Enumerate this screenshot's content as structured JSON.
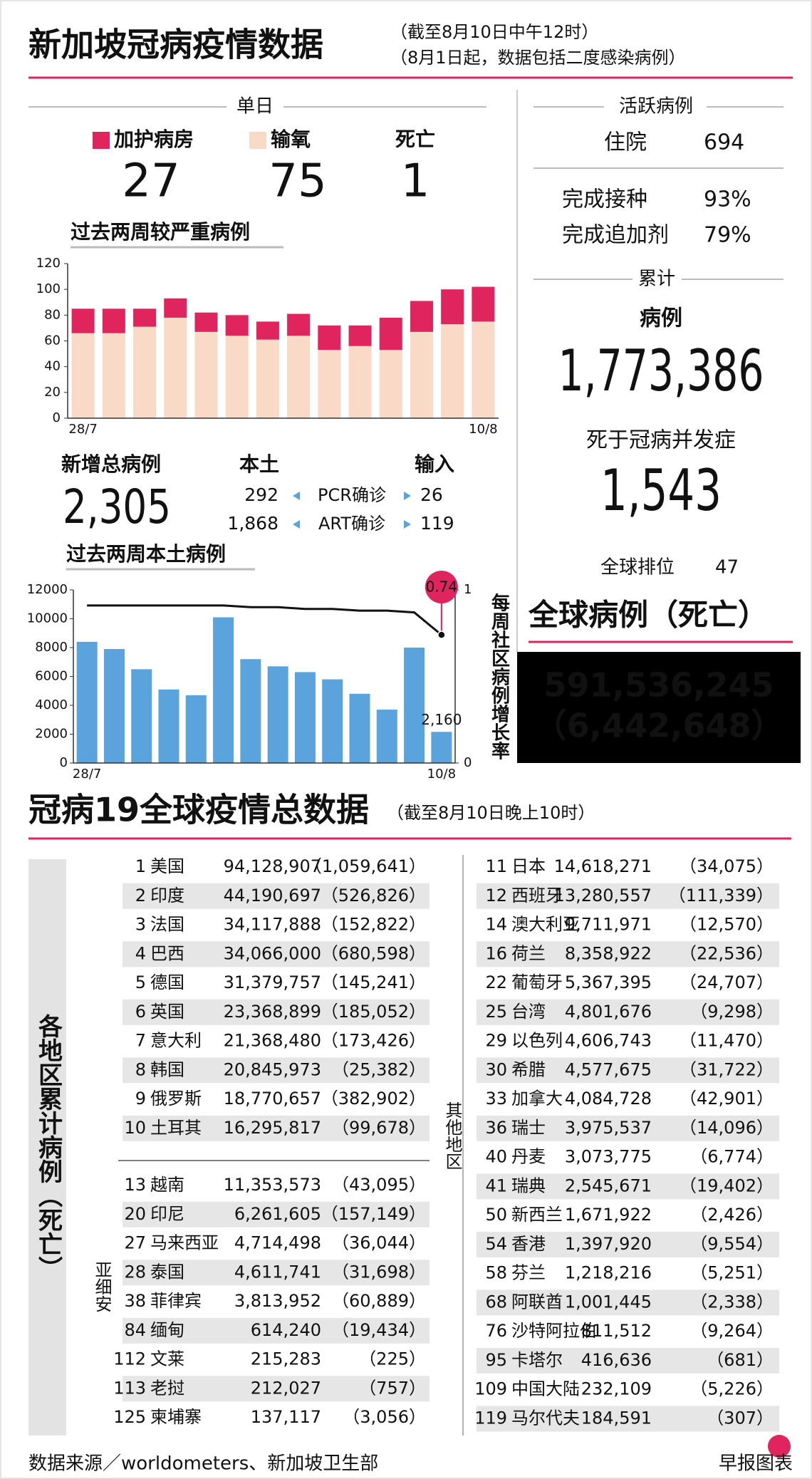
{
  "header": {
    "title": "新加坡冠病疫情数据",
    "notes": [
      "（截至8月10日中午12时）",
      "（8月1日起，数据包括二度感染病例）"
    ]
  },
  "daily": {
    "heading": "单日",
    "death_label": "死亡",
    "death_value": "1"
  },
  "chart_data": [
    {
      "type": "bar",
      "stacked": true,
      "title": "过去两周较严重病例",
      "categories": [
        "28/7",
        null,
        null,
        null,
        null,
        null,
        null,
        null,
        null,
        null,
        null,
        null,
        null,
        "10/8"
      ],
      "series": [
        {
          "name": "输氧",
          "color": "#f9dac6",
          "values": [
            66,
            66,
            71,
            78,
            67,
            64,
            61,
            64,
            53,
            56,
            53,
            67,
            73,
            75
          ]
        },
        {
          "name": "加护病房",
          "color": "#e0245e",
          "values": [
            19,
            19,
            14,
            15,
            15,
            16,
            14,
            17,
            19,
            16,
            25,
            24,
            27,
            27
          ]
        }
      ],
      "ylim": [
        0,
        120
      ],
      "yticks": [
        0,
        20,
        40,
        60,
        80,
        100,
        120
      ]
    },
    {
      "type": "combo",
      "title": "过去两周本土病例",
      "categories": [
        "28/7",
        null,
        null,
        null,
        null,
        null,
        null,
        null,
        null,
        null,
        null,
        null,
        null,
        "10/8"
      ],
      "series": [
        {
          "type": "bar",
          "color": "#5ba3dc",
          "values": [
            8400,
            7900,
            6500,
            5100,
            4700,
            10100,
            7200,
            6700,
            6300,
            5800,
            4800,
            3700,
            8000,
            2160
          ],
          "value_labels": [
            null,
            null,
            null,
            null,
            null,
            null,
            null,
            null,
            null,
            null,
            null,
            null,
            null,
            "2,160"
          ]
        },
        {
          "type": "line",
          "axis": "y2",
          "color": "#111111",
          "values": [
            0.91,
            0.91,
            0.91,
            0.91,
            0.91,
            0.91,
            0.9,
            0.9,
            0.89,
            0.89,
            0.88,
            0.88,
            0.87,
            0.74
          ],
          "value_labels": [
            null,
            null,
            null,
            null,
            null,
            null,
            null,
            null,
            null,
            null,
            null,
            null,
            null,
            "0.74"
          ],
          "label_color": "#e0245e"
        }
      ],
      "ylim": [
        0,
        12000
      ],
      "yticks": [
        0,
        2000,
        4000,
        6000,
        8000,
        10000,
        12000
      ],
      "y2lim": [
        0,
        1
      ],
      "y2ticks": [
        0,
        1
      ],
      "y2label": "每周社区病例增长率"
    }
  ],
  "new_cases": {
    "label": "新增总病例",
    "total": "2,305",
    "local_label": "本土",
    "imported_label": "输入",
    "rows": [
      {
        "label": "PCR确诊",
        "local": "292",
        "imported": "26"
      },
      {
        "label": "ART确诊",
        "local": "1,868",
        "imported": "119"
      }
    ]
  },
  "active": {
    "heading": "活跃病例",
    "hospital_label": "住院",
    "hospital": "694",
    "vaccinated_label": "完成接种",
    "vaccinated": "93%",
    "booster_label": "完成追加剂",
    "booster": "79%"
  },
  "cumulative": {
    "heading": "累计",
    "cases_label": "病例",
    "cases": "1,773,386",
    "deaths_label": "死于冠病并发症",
    "deaths": "1,543",
    "rank_label": "全球排位",
    "rank": "47"
  },
  "global": {
    "heading": "全球病例（死亡）",
    "cases": "591,536,245",
    "deaths": "（6,442,648）"
  },
  "world": {
    "title": "冠病19全球疫情总数据",
    "note": "（截至8月10日晚上10时）",
    "side_label": "各地区累计病例（死亡）",
    "asean_label": "亚细安",
    "other_label": "其他地区",
    "top": [
      [
        "1",
        "美国",
        "94,128,907",
        "（1,059,641）"
      ],
      [
        "2",
        "印度",
        "44,190,697",
        "（526,826）"
      ],
      [
        "3",
        "法国",
        "34,117,888",
        "（152,822）"
      ],
      [
        "4",
        "巴西",
        "34,066,000",
        "（680,598）"
      ],
      [
        "5",
        "德国",
        "31,379,757",
        "（145,241）"
      ],
      [
        "6",
        "英国",
        "23,368,899",
        "（185,052）"
      ],
      [
        "7",
        "意大利",
        "21,368,480",
        "（173,426）"
      ],
      [
        "8",
        "韩国",
        "20,845,973",
        "（25,382）"
      ],
      [
        "9",
        "俄罗斯",
        "18,770,657",
        "（382,902）"
      ],
      [
        "10",
        "土耳其",
        "16,295,817",
        "（99,678）"
      ]
    ],
    "asean": [
      [
        "13",
        "越南",
        "11,353,573",
        "（43,095）"
      ],
      [
        "20",
        "印尼",
        "6,261,605",
        "（157,149）"
      ],
      [
        "27",
        "马来西亚",
        "4,714,498",
        "（36,044）"
      ],
      [
        "28",
        "泰国",
        "4,611,741",
        "（31,698）"
      ],
      [
        "38",
        "菲律宾",
        "3,813,952",
        "（60,889）"
      ],
      [
        "84",
        "缅甸",
        "614,240",
        "（19,434）"
      ],
      [
        "112",
        "文莱",
        "215,283",
        "（225）"
      ],
      [
        "113",
        "老挝",
        "212,027",
        "（757）"
      ],
      [
        "125",
        "柬埔寨",
        "137,117",
        "（3,056）"
      ]
    ],
    "other": [
      [
        "11",
        "日本",
        "14,618,271",
        "（34,075）"
      ],
      [
        "12",
        "西班牙",
        "13,280,557",
        "（111,339）"
      ],
      [
        "14",
        "澳大利亚",
        "9,711,971",
        "（12,570）"
      ],
      [
        "16",
        "荷兰",
        "8,358,922",
        "（22,536）"
      ],
      [
        "22",
        "葡萄牙",
        "5,367,395",
        "（24,707）"
      ],
      [
        "25",
        "台湾",
        "4,801,676",
        "（9,298）"
      ],
      [
        "29",
        "以色列",
        "4,606,743",
        "（11,470）"
      ],
      [
        "30",
        "希腊",
        "4,577,675",
        "（31,722）"
      ],
      [
        "33",
        "加拿大",
        "4,084,728",
        "（42,901）"
      ],
      [
        "36",
        "瑞士",
        "3,975,537",
        "（14,096）"
      ],
      [
        "40",
        "丹麦",
        "3,073,775",
        "（6,774）"
      ],
      [
        "41",
        "瑞典",
        "2,545,671",
        "（19,402）"
      ],
      [
        "50",
        "新西兰",
        "1,671,922",
        "（2,426）"
      ],
      [
        "54",
        "香港",
        "1,397,920",
        "（9,554）"
      ],
      [
        "58",
        "芬兰",
        "1,218,216",
        "（5,251）"
      ],
      [
        "68",
        "阿联酋",
        "1,001,445",
        "（2,338）"
      ],
      [
        "76",
        "沙特阿拉伯",
        "811,512",
        "（9,264）"
      ],
      [
        "95",
        "卡塔尔",
        "416,636",
        "（681）"
      ],
      [
        "109",
        "中国大陆",
        "232,109",
        "（5,226）"
      ],
      [
        "119",
        "马尔代夫",
        "184,591",
        "（307）"
      ]
    ]
  },
  "footer": {
    "source": "数据来源／worldometers、新加坡卫生部",
    "credit": "早报图表"
  }
}
